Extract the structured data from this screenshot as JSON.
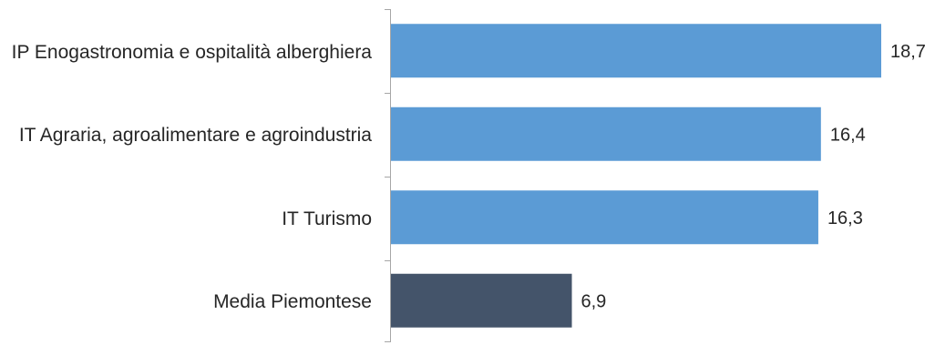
{
  "chart_data": {
    "type": "hbar",
    "categories": [
      "IP Enogastronomia e ospitalità alberghiera",
      "IT Agraria, agroalimentare e agroindustria",
      "IT Turismo",
      "Media Piemontese"
    ],
    "values": [
      18.7,
      16.4,
      16.3,
      6.9
    ],
    "value_labels": [
      "18,7",
      "16,4",
      "16,3",
      "6,9"
    ],
    "colors": [
      "#5b9bd5",
      "#5b9bd5",
      "#5b9bd5",
      "#44546a"
    ]
  }
}
